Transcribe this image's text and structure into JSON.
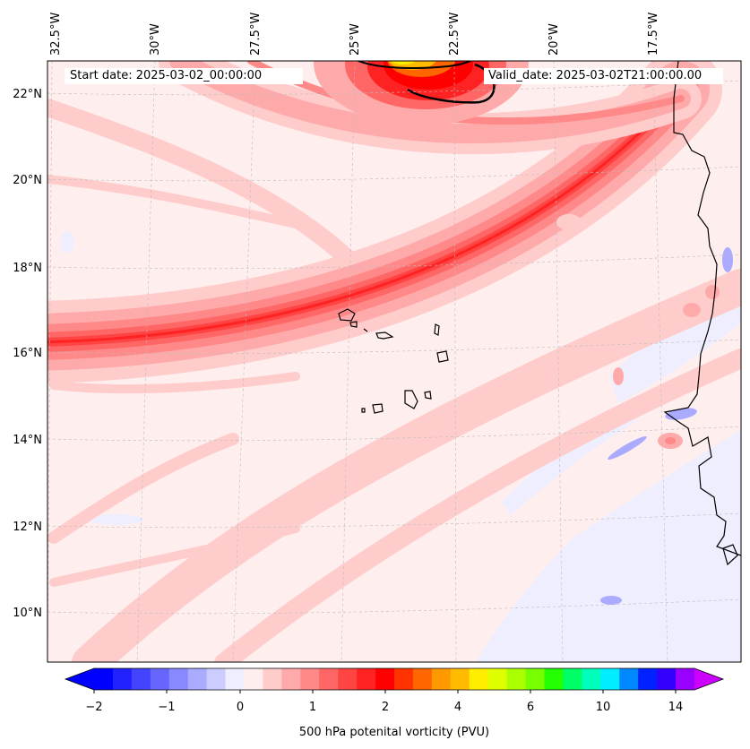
{
  "map": {
    "start_date": "Start date: 2025-03-02_00:00:00",
    "valid_date": "Valid_date: 2025-03-02T21:00:00.00",
    "lon_labels": [
      "32.5°W",
      "30°W",
      "27.5°W",
      "25°W",
      "22.5°W",
      "20°W",
      "17.5°W"
    ],
    "lat_labels": [
      "22°N",
      "20°N",
      "18°N",
      "16°N",
      "14°N",
      "12°N",
      "10°N"
    ],
    "variable": "500 hPa potential vorticity"
  },
  "colorbar": {
    "label": "500 hPa potenital vorticity (PVU)",
    "ticks": [
      "−2",
      "−1",
      "0",
      "1",
      "2",
      "4",
      "6",
      "10",
      "14"
    ],
    "colors": [
      "#0000ff",
      "#2222ff",
      "#4444ff",
      "#6666ff",
      "#8888ff",
      "#aaaaff",
      "#ccccff",
      "#eeeeff",
      "#ffeeee",
      "#ffcccc",
      "#ffaaaa",
      "#ff8888",
      "#ff6666",
      "#ff4444",
      "#ff2222",
      "#ff0000",
      "#ff3300",
      "#ff6600",
      "#ff9900",
      "#ffbb00",
      "#ffee00",
      "#ddff00",
      "#aaff00",
      "#77ff00",
      "#22ff00",
      "#00ff66",
      "#00ffbb",
      "#00eeff",
      "#0088ff",
      "#0022ff",
      "#3300ff",
      "#9900ff"
    ],
    "under_color": "#0000ff",
    "over_color": "#cc00ff"
  }
}
